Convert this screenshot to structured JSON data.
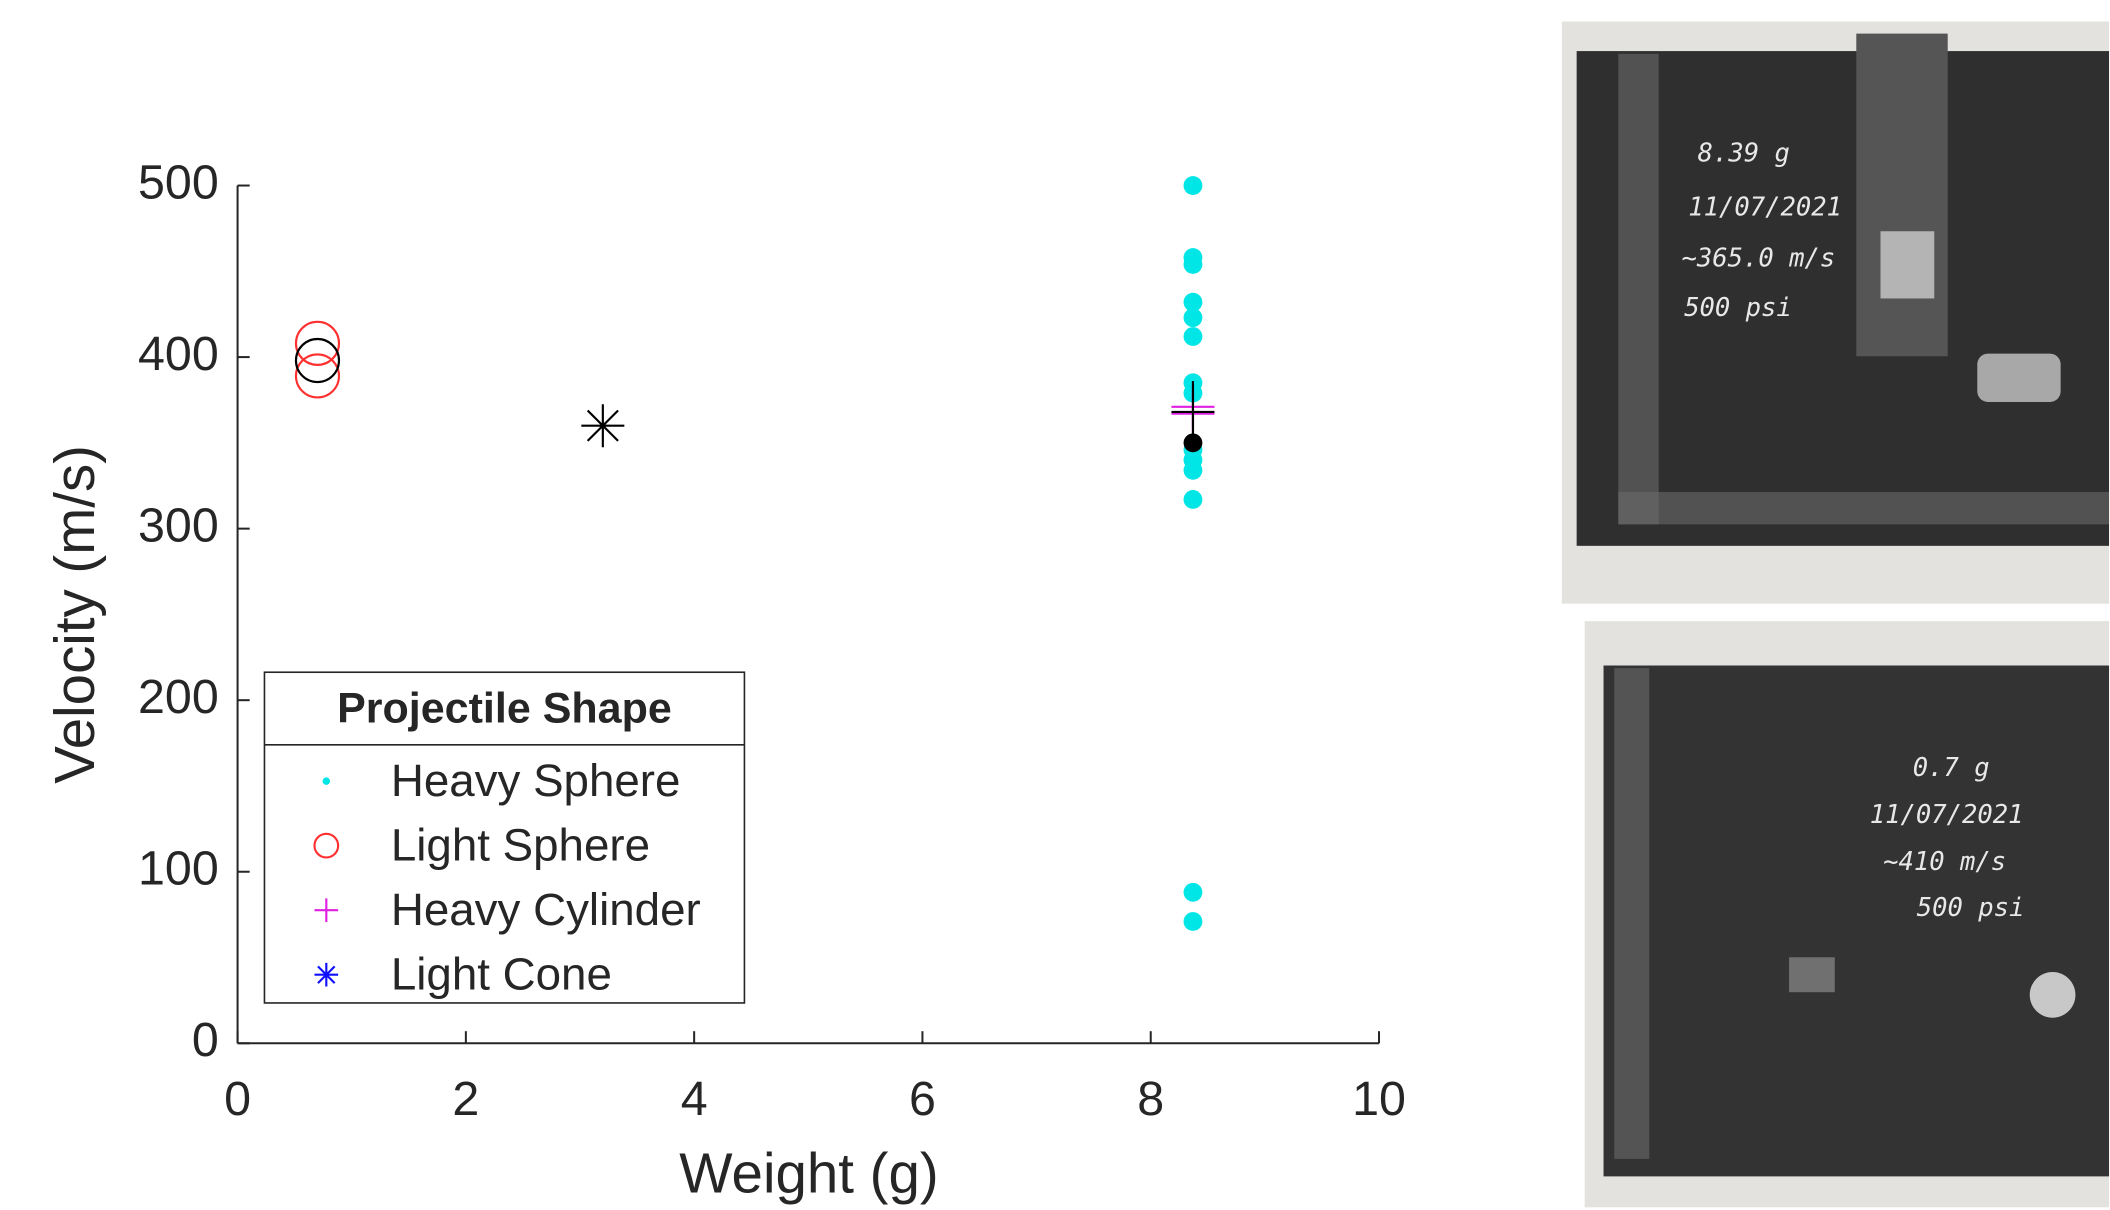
{
  "chart_data": {
    "type": "scatter",
    "x_label": "Weight (g)",
    "y_label": "Velocity (m/s)",
    "xlim": [
      0,
      10
    ],
    "xticks": [
      0,
      2,
      4,
      6,
      8,
      10
    ],
    "ylim": [
      0,
      500
    ],
    "yticks": [
      0,
      100,
      200,
      300,
      400,
      500
    ],
    "legend_title": "Projectile Shape",
    "legend": "lower left",
    "series": [
      {
        "name": "Heavy Sphere",
        "color": "#00e5e5",
        "marker": "dot",
        "x": [
          8.37,
          8.37,
          8.37,
          8.37,
          8.37,
          8.37,
          8.37,
          8.37,
          8.37,
          8.37,
          8.37,
          8.37,
          8.37,
          8.37
        ],
        "values": [
          500,
          458,
          454,
          432,
          423,
          412,
          385,
          379,
          346,
          340,
          334,
          317,
          88,
          71
        ]
      },
      {
        "name": "Light Sphere",
        "color": "#ff3030",
        "marker": "circle",
        "x": [
          0.7,
          0.7
        ],
        "values": [
          408,
          389
        ]
      },
      {
        "name": "Heavy Cylinder",
        "color": "#e020e0",
        "marker": "plus",
        "x": [
          8.37,
          8.37
        ],
        "values": [
          371,
          367
        ]
      },
      {
        "name": "Light Cone",
        "color": "#1010ff",
        "marker": "asterisk",
        "x": [],
        "values": []
      },
      {
        "color": "#000000",
        "marker": "circle",
        "x": [
          0.7
        ],
        "values": [
          398
        ]
      },
      {
        "color": "#000000",
        "marker": "asterisk",
        "x": [
          3.2
        ],
        "values": [
          360
        ]
      },
      {
        "color": "#000000",
        "marker": "plus",
        "x": [
          8.37
        ],
        "values": [
          368
        ],
        "errors": [
          18
        ]
      },
      {
        "color": "#000000",
        "marker": "dot",
        "x": [
          8.37
        ],
        "values": [
          350
        ]
      }
    ]
  },
  "photos": [
    {
      "notes": [
        "8.39 g",
        "11/07/2021",
        "~365.0 m/s",
        "500 psi"
      ]
    },
    {
      "notes": [
        "0.7 g",
        "11/07/2021",
        "~410 m/s",
        "500 psi"
      ]
    }
  ]
}
